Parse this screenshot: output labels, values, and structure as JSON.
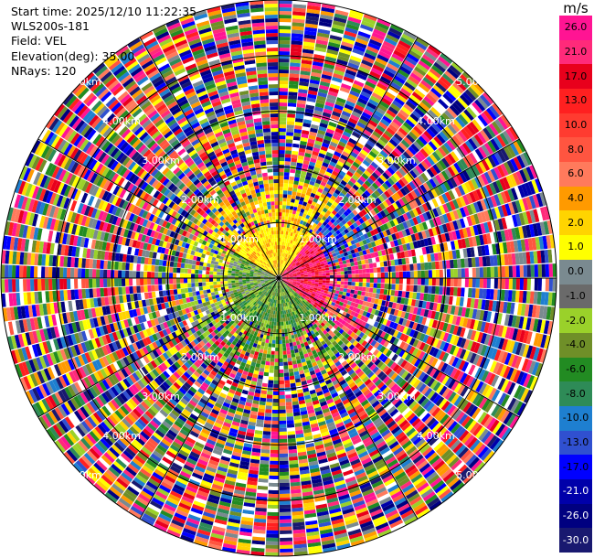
{
  "info": {
    "start_time": "Start time: 2025/12/10 11:22:35",
    "instrument": "WLS200s-181",
    "field": "Field: VEL",
    "elevation": "Elevation(deg): 35.00",
    "nrays": "NRays: 120"
  },
  "colorbar": {
    "unit": "m/s",
    "ticks": [
      "26.0",
      "21.0",
      "17.0",
      "13.0",
      "10.0",
      "8.0",
      "6.0",
      "4.0",
      "2.0",
      "1.0",
      "0.0",
      "-1.0",
      "-2.0",
      "-4.0",
      "-6.0",
      "-8.0",
      "-10.0",
      "-13.0",
      "-17.0",
      "-21.0",
      "-26.0",
      "-30.0"
    ],
    "colors": [
      "#ff1493",
      "#ff2a7a",
      "#e8001c",
      "#ff2020",
      "#ff3b30",
      "#ff5540",
      "#ff7a5c",
      "#ff9a00",
      "#ffd400",
      "#ffff00",
      "#7a8a90",
      "#6a6a6a",
      "#9ad12a",
      "#6f8f28",
      "#228b22",
      "#2e8b57",
      "#1e7fd0",
      "#3050d0",
      "#0000ff",
      "#0000aa",
      "#000080",
      "#191970"
    ]
  },
  "chart_data": {
    "type": "ppi",
    "field": "VEL",
    "units": "m/s",
    "elevation_deg": 35.0,
    "n_rays": 120,
    "range_ring_labels": [
      "1.00km",
      "2.00km",
      "3.00km",
      "4.00km",
      "5.00km"
    ],
    "range_rings_km": [
      1,
      2,
      3,
      4,
      5
    ],
    "max_range_km": 5.0,
    "colorbar_min": -30.0,
    "colorbar_max": 26.0
  }
}
